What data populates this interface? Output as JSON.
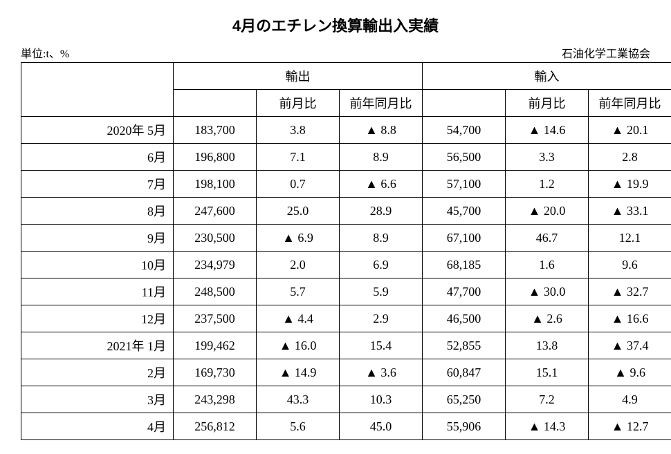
{
  "title": "4月のエチレン換算輸出入実績",
  "unit_label": "単位:t、%",
  "source_label": "石油化学工業協会",
  "headers": {
    "export_group": "輸出",
    "import_group": "輸入",
    "mom": "前月比",
    "yoy": "前年同月比"
  },
  "rows": [
    {
      "period": "2020年 5月",
      "exp_val": "183,700",
      "exp_mom": "3.8",
      "exp_yoy": "▲ 8.8",
      "imp_val": "54,700",
      "imp_mom": "▲ 14.6",
      "imp_yoy": "▲ 20.1"
    },
    {
      "period": "6月",
      "exp_val": "196,800",
      "exp_mom": "7.1",
      "exp_yoy": "8.9",
      "imp_val": "56,500",
      "imp_mom": "3.3",
      "imp_yoy": "2.8"
    },
    {
      "period": "7月",
      "exp_val": "198,100",
      "exp_mom": "0.7",
      "exp_yoy": "▲ 6.6",
      "imp_val": "57,100",
      "imp_mom": "1.2",
      "imp_yoy": "▲ 19.9"
    },
    {
      "period": "8月",
      "exp_val": "247,600",
      "exp_mom": "25.0",
      "exp_yoy": "28.9",
      "imp_val": "45,700",
      "imp_mom": "▲ 20.0",
      "imp_yoy": "▲ 33.1"
    },
    {
      "period": "9月",
      "exp_val": "230,500",
      "exp_mom": "▲ 6.9",
      "exp_yoy": "8.9",
      "imp_val": "67,100",
      "imp_mom": "46.7",
      "imp_yoy": "12.1"
    },
    {
      "period": "10月",
      "exp_val": "234,979",
      "exp_mom": "2.0",
      "exp_yoy": "6.9",
      "imp_val": "68,185",
      "imp_mom": "1.6",
      "imp_yoy": "9.6"
    },
    {
      "period": "11月",
      "exp_val": "248,500",
      "exp_mom": "5.7",
      "exp_yoy": "5.9",
      "imp_val": "47,700",
      "imp_mom": "▲ 30.0",
      "imp_yoy": "▲ 32.7"
    },
    {
      "period": "12月",
      "exp_val": "237,500",
      "exp_mom": "▲ 4.4",
      "exp_yoy": "2.9",
      "imp_val": "46,500",
      "imp_mom": "▲ 2.6",
      "imp_yoy": "▲ 16.6"
    },
    {
      "period": "2021年 1月",
      "exp_val": "199,462",
      "exp_mom": "▲ 16.0",
      "exp_yoy": "15.4",
      "imp_val": "52,855",
      "imp_mom": "13.8",
      "imp_yoy": "▲ 37.4"
    },
    {
      "period": "2月",
      "exp_val": "169,730",
      "exp_mom": "▲ 14.9",
      "exp_yoy": "▲ 3.6",
      "imp_val": "60,847",
      "imp_mom": "15.1",
      "imp_yoy": "▲ 9.6"
    },
    {
      "period": "3月",
      "exp_val": "243,298",
      "exp_mom": "43.3",
      "exp_yoy": "10.3",
      "imp_val": "65,250",
      "imp_mom": "7.2",
      "imp_yoy": "4.9"
    },
    {
      "period": "4月",
      "exp_val": "256,812",
      "exp_mom": "5.6",
      "exp_yoy": "45.0",
      "imp_val": "55,906",
      "imp_mom": "▲ 14.3",
      "imp_yoy": "▲ 12.7"
    }
  ],
  "table_style": {
    "border_color": "#000000",
    "bg_color": "#ffffff",
    "font_family": "serif",
    "title_fontsize": 22,
    "cell_fontsize": 18
  }
}
